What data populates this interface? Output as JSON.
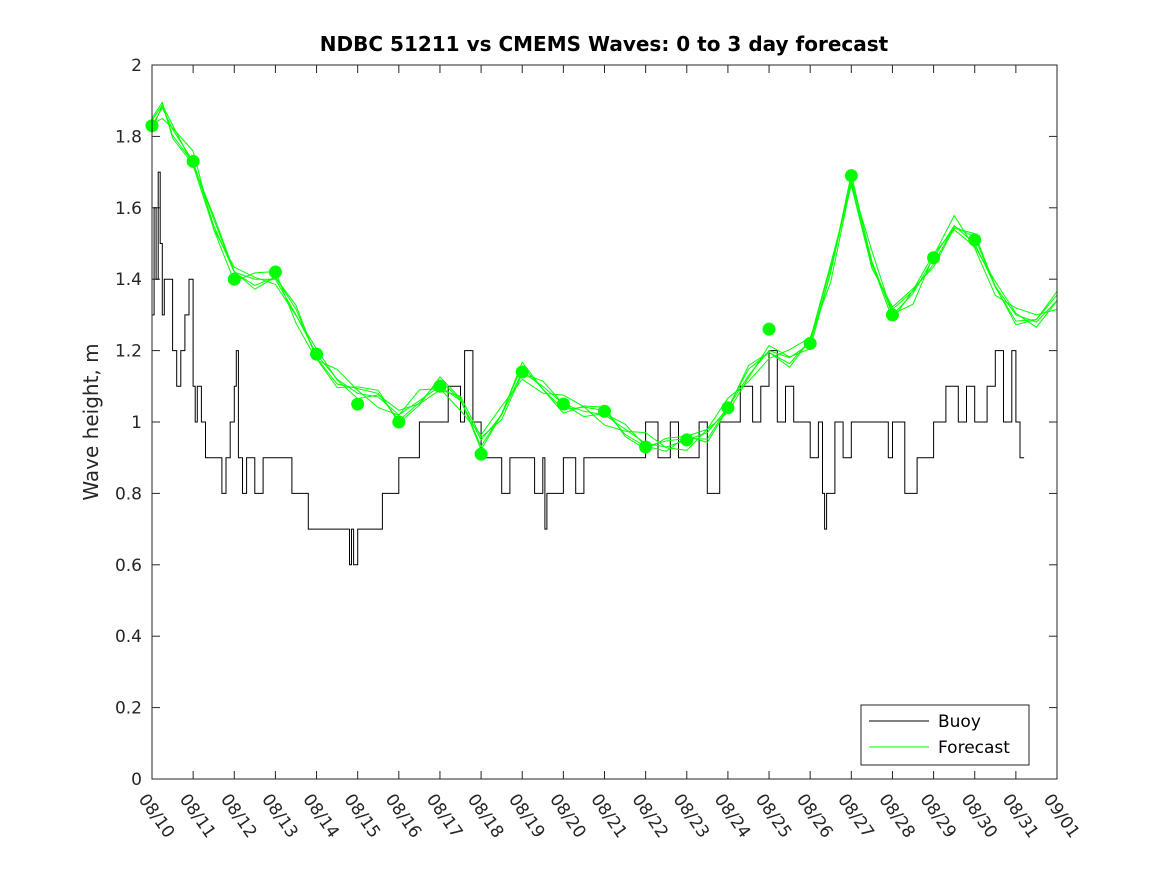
{
  "chart_data": {
    "type": "line",
    "title": "NDBC 51211 vs CMEMS Waves: 0 to 3 day forecast",
    "xlabel": "",
    "ylabel": "Wave height, m",
    "ylim": [
      0,
      2
    ],
    "xlim_days": [
      0,
      22
    ],
    "yticks": [
      "0",
      "0.2",
      "0.4",
      "0.6",
      "0.8",
      "1",
      "1.2",
      "1.4",
      "1.6",
      "1.8",
      "2"
    ],
    "xticks": [
      "08/10",
      "08/11",
      "08/12",
      "08/13",
      "08/14",
      "08/15",
      "08/16",
      "08/17",
      "08/18",
      "08/19",
      "08/20",
      "08/21",
      "08/22",
      "08/23",
      "08/24",
      "08/25",
      "08/26",
      "08/27",
      "08/28",
      "08/29",
      "08/30",
      "08/31",
      "09/01"
    ],
    "legend": [
      "Buoy",
      "Forecast"
    ],
    "legend_location": "bottom-right",
    "colors": {
      "buoy": "#000000",
      "forecast": "#00ff00"
    },
    "series": [
      {
        "name": "Buoy",
        "x": [
          0,
          0.05,
          0.1,
          0.15,
          0.2,
          0.25,
          0.3,
          0.4,
          0.5,
          0.6,
          0.7,
          0.8,
          0.9,
          1.0,
          1.05,
          1.1,
          1.2,
          1.3,
          1.5,
          1.7,
          1.8,
          1.9,
          2.0,
          2.05,
          2.1,
          2.2,
          2.3,
          2.5,
          2.7,
          3.0,
          3.2,
          3.4,
          3.6,
          3.8,
          4.0,
          4.2,
          4.4,
          4.6,
          4.8,
          4.85,
          4.9,
          5.0,
          5.2,
          5.5,
          5.6,
          5.8,
          6.0,
          6.2,
          6.4,
          6.5,
          6.7,
          7.0,
          7.2,
          7.5,
          7.6,
          7.8,
          8.0,
          8.2,
          8.5,
          8.7,
          9.0,
          9.3,
          9.5,
          9.55,
          9.6,
          9.8,
          10.0,
          10.3,
          10.5,
          10.8,
          11.0,
          11.2,
          11.5,
          11.8,
          12.0,
          12.3,
          12.6,
          12.8,
          13.0,
          13.3,
          13.5,
          13.8,
          14.0,
          14.3,
          14.6,
          14.8,
          15.0,
          15.2,
          15.4,
          15.6,
          15.8,
          16.0,
          16.2,
          16.3,
          16.35,
          16.4,
          16.6,
          16.8,
          17.0,
          17.3,
          17.6,
          17.9,
          18.0,
          18.3,
          18.6,
          18.8,
          19.0,
          19.3,
          19.6,
          19.8,
          20.0,
          20.3,
          20.5,
          20.7,
          20.9,
          21.0,
          21.1,
          21.2
        ],
        "y": [
          1.3,
          1.6,
          1.4,
          1.7,
          1.5,
          1.3,
          1.4,
          1.4,
          1.2,
          1.1,
          1.2,
          1.3,
          1.4,
          1.1,
          1.0,
          1.1,
          1.0,
          0.9,
          0.9,
          0.8,
          0.9,
          1.0,
          1.1,
          1.2,
          0.9,
          0.8,
          0.9,
          0.8,
          0.9,
          0.9,
          0.9,
          0.8,
          0.8,
          0.7,
          0.7,
          0.7,
          0.7,
          0.7,
          0.6,
          0.7,
          0.6,
          0.7,
          0.7,
          0.7,
          0.8,
          0.8,
          0.9,
          0.9,
          0.9,
          1.0,
          1.0,
          1.0,
          1.1,
          1.0,
          1.2,
          1.0,
          0.9,
          0.9,
          0.8,
          0.9,
          0.9,
          0.8,
          0.9,
          0.7,
          0.8,
          0.8,
          0.9,
          0.8,
          0.9,
          0.9,
          0.9,
          0.9,
          0.9,
          0.9,
          1.0,
          0.9,
          1.0,
          0.9,
          0.9,
          1.0,
          0.8,
          1.0,
          1.0,
          1.1,
          1.0,
          1.1,
          1.2,
          1.0,
          1.1,
          1.0,
          1.0,
          0.9,
          1.0,
          0.8,
          0.7,
          0.8,
          1.0,
          0.9,
          1.0,
          1.0,
          1.0,
          0.9,
          1.0,
          0.8,
          0.9,
          0.9,
          1.0,
          1.1,
          1.0,
          1.1,
          1.0,
          1.1,
          1.2,
          1.0,
          1.2,
          1.0,
          0.9,
          0.9
        ]
      },
      {
        "name": "Forecast",
        "x": [
          0,
          0.25,
          0.5,
          1.0,
          1.5,
          2.0,
          2.5,
          3.0,
          3.5,
          4.0,
          4.5,
          5.0,
          5.5,
          6.0,
          6.5,
          7.0,
          7.5,
          8.0,
          8.5,
          9.0,
          9.5,
          10.0,
          10.5,
          11.0,
          11.5,
          12.0,
          12.5,
          13.0,
          13.5,
          14.0,
          14.5,
          15.0,
          15.5,
          16.0,
          16.5,
          17.0,
          17.5,
          18.0,
          18.5,
          19.0,
          19.5,
          20.0,
          20.5,
          21.0,
          21.5,
          22.0
        ],
        "y": [
          1.83,
          1.88,
          1.82,
          1.73,
          1.55,
          1.42,
          1.4,
          1.4,
          1.3,
          1.19,
          1.12,
          1.08,
          1.07,
          1.02,
          1.06,
          1.1,
          1.06,
          0.95,
          1.02,
          1.14,
          1.1,
          1.05,
          1.03,
          1.02,
          0.98,
          0.94,
          0.93,
          0.95,
          0.97,
          1.04,
          1.13,
          1.2,
          1.18,
          1.22,
          1.42,
          1.68,
          1.45,
          1.3,
          1.36,
          1.46,
          1.55,
          1.5,
          1.38,
          1.3,
          1.28,
          1.34
        ]
      }
    ],
    "forecast_markers": {
      "x": [
        0,
        1,
        2,
        3,
        4,
        5,
        6,
        7,
        8,
        9,
        10,
        11,
        12,
        13,
        14,
        15,
        16,
        17,
        18,
        19,
        20
      ],
      "y": [
        1.83,
        1.73,
        1.4,
        1.42,
        1.19,
        1.05,
        1.0,
        1.1,
        0.91,
        1.14,
        1.05,
        1.03,
        0.93,
        0.95,
        1.04,
        1.26,
        1.22,
        1.69,
        1.3,
        1.46,
        1.51
      ]
    }
  }
}
